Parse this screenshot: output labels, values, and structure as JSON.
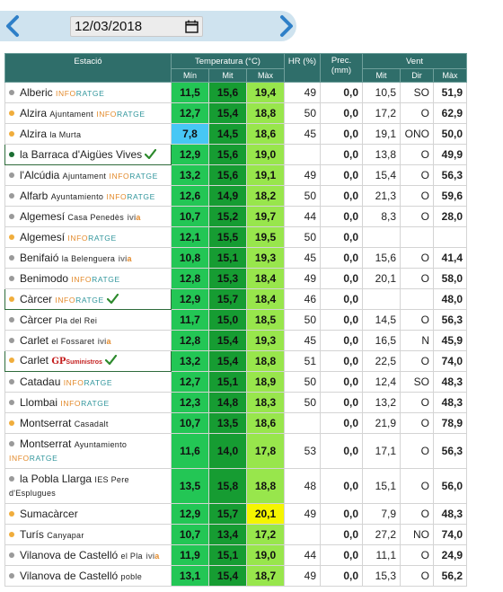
{
  "date_picker": {
    "value": "12/03/2018",
    "prev_icon": "chevron-left-icon",
    "next_icon": "chevron-right-icon",
    "calendar_icon": "calendar-icon"
  },
  "header": {
    "station": "Estació",
    "temperature": "Temperatura (°C)",
    "hr": "HR (%)",
    "prec": "Prec. (mm)",
    "wind": "Vent",
    "t_min": "Mín",
    "t_mit": "Mit",
    "t_max": "Màx",
    "w_mit": "Mit",
    "w_dir": "Dir",
    "w_max": "Màx"
  },
  "colors": {
    "header_bg": "#2f6e6a",
    "min_green": "#23c655",
    "mit_green": "#169c32",
    "max_green": "#98e64c",
    "min_cold_blue": "#47c7f5",
    "max_hot_yellow": "#f5f500",
    "dot_gray": "#9a9a9a",
    "dot_orange": "#f0ad3c",
    "dot_green": "#1b6e32"
  },
  "rows": [
    {
      "name": "Alberic",
      "sub": "",
      "src": "INFORATGE",
      "dot": "gray",
      "tmin": "11,5",
      "tmit": "15,6",
      "tmax": "19,4",
      "hr": "49",
      "prec": "0,0",
      "wmit": "10,5",
      "wdir": "SO",
      "wmax": "51,9"
    },
    {
      "name": "Alzira",
      "sub": "Ajuntament",
      "src": "INFORATGE",
      "dot": "orange",
      "tmin": "12,7",
      "tmit": "15,4",
      "tmax": "18,8",
      "hr": "50",
      "prec": "0,0",
      "wmit": "17,2",
      "wdir": "O",
      "wmax": "62,9"
    },
    {
      "name": "Alzira",
      "sub": "la Murta",
      "src": "",
      "dot": "orange",
      "tmin": "7,8",
      "tmit": "14,5",
      "tmax": "18,6",
      "hr": "45",
      "prec": "0,0",
      "wmit": "19,1",
      "wdir": "ONO",
      "wmax": "50,0",
      "cold": true
    },
    {
      "name": "la Barraca d'Aigües Vives",
      "sub": "",
      "src": "",
      "dot": "green",
      "tmin": "12,9",
      "tmit": "15,6",
      "tmax": "19,0",
      "hr": "",
      "prec": "0,0",
      "wmit": "13,8",
      "wdir": "O",
      "wmax": "49,9",
      "check": true,
      "hl": true
    },
    {
      "name": "l'Alcúdia",
      "sub": "Ajuntament",
      "src": "INFORATGE",
      "dot": "gray",
      "tmin": "13,2",
      "tmit": "15,6",
      "tmax": "19,1",
      "hr": "49",
      "prec": "0,0",
      "wmit": "15,4",
      "wdir": "O",
      "wmax": "56,3"
    },
    {
      "name": "Alfarb",
      "sub": "Ayuntamiento",
      "src": "INFORATGE",
      "dot": "gray",
      "tmin": "12,6",
      "tmit": "14,9",
      "tmax": "18,2",
      "hr": "50",
      "prec": "0,0",
      "wmit": "21,3",
      "wdir": "O",
      "wmax": "59,6"
    },
    {
      "name": "Algemesí",
      "sub": "Casa Penedès",
      "src": "ivia",
      "dot": "gray",
      "tmin": "10,7",
      "tmit": "15,2",
      "tmax": "19,7",
      "hr": "44",
      "prec": "0,0",
      "wmit": "8,3",
      "wdir": "O",
      "wmax": "28,0"
    },
    {
      "name": "Algemesí",
      "sub": "",
      "src": "INFORATGE",
      "dot": "orange",
      "tmin": "12,1",
      "tmit": "15,5",
      "tmax": "19,5",
      "hr": "50",
      "prec": "0,0",
      "wmit": "",
      "wdir": "",
      "wmax": ""
    },
    {
      "name": "Benifaió",
      "sub": "la Belenguera",
      "src": "ivia",
      "dot": "gray",
      "tmin": "10,8",
      "tmit": "15,1",
      "tmax": "19,3",
      "hr": "45",
      "prec": "0,0",
      "wmit": "15,6",
      "wdir": "O",
      "wmax": "41,4"
    },
    {
      "name": "Benimodo",
      "sub": "",
      "src": "INFORATGE",
      "dot": "gray",
      "tmin": "12,8",
      "tmit": "15,3",
      "tmax": "18,4",
      "hr": "49",
      "prec": "0,0",
      "wmit": "20,1",
      "wdir": "O",
      "wmax": "58,0"
    },
    {
      "name": "Càrcer",
      "sub": "",
      "src": "INFORATGE",
      "dot": "orange",
      "tmin": "12,9",
      "tmit": "15,7",
      "tmax": "18,4",
      "hr": "46",
      "prec": "0,0",
      "wmit": "",
      "wdir": "",
      "wmax": "48,0",
      "check": true,
      "hl": true
    },
    {
      "name": "Càrcer",
      "sub": "Pla del Rei",
      "src": "",
      "dot": "gray",
      "tmin": "11,7",
      "tmit": "15,0",
      "tmax": "18,5",
      "hr": "50",
      "prec": "0,0",
      "wmit": "14,5",
      "wdir": "O",
      "wmax": "56,3"
    },
    {
      "name": "Carlet",
      "sub": "el Fossaret",
      "src": "ivia",
      "dot": "gray",
      "tmin": "12,8",
      "tmit": "15,4",
      "tmax": "19,3",
      "hr": "45",
      "prec": "0,0",
      "wmit": "16,5",
      "wdir": "N",
      "wmax": "45,9"
    },
    {
      "name": "Carlet",
      "sub": "",
      "src": "GP",
      "dot": "orange",
      "tmin": "13,2",
      "tmit": "15,4",
      "tmax": "18,8",
      "hr": "51",
      "prec": "0,0",
      "wmit": "22,5",
      "wdir": "O",
      "wmax": "74,0",
      "check": true,
      "hl": true
    },
    {
      "name": "Catadau",
      "sub": "",
      "src": "INFORATGE",
      "dot": "gray",
      "tmin": "12,7",
      "tmit": "15,1",
      "tmax": "18,9",
      "hr": "50",
      "prec": "0,0",
      "wmit": "12,4",
      "wdir": "SO",
      "wmax": "48,3"
    },
    {
      "name": "Llombai",
      "sub": "",
      "src": "INFORATGE",
      "dot": "gray",
      "tmin": "12,3",
      "tmit": "14,8",
      "tmax": "18,3",
      "hr": "50",
      "prec": "0,0",
      "wmit": "13,2",
      "wdir": "O",
      "wmax": "48,3"
    },
    {
      "name": "Montserrat",
      "sub": "Casadalt",
      "src": "",
      "dot": "orange",
      "tmin": "10,7",
      "tmit": "13,5",
      "tmax": "18,6",
      "hr": "",
      "prec": "0,0",
      "wmit": "21,9",
      "wdir": "O",
      "wmax": "78,9"
    },
    {
      "name": "Montserrat",
      "sub": "Ayuntamiento",
      "src": "INFORATGE",
      "dot": "gray",
      "tmin": "11,6",
      "tmit": "14,0",
      "tmax": "17,8",
      "hr": "53",
      "prec": "0,0",
      "wmit": "17,1",
      "wdir": "O",
      "wmax": "56,3",
      "tall": true
    },
    {
      "name": "la Pobla Llarga",
      "sub": "IES Pere d'Esplugues",
      "src": "",
      "dot": "gray",
      "tmin": "13,5",
      "tmit": "15,8",
      "tmax": "18,8",
      "hr": "48",
      "prec": "0,0",
      "wmit": "15,1",
      "wdir": "O",
      "wmax": "56,0",
      "tall": true
    },
    {
      "name": "Sumacàrcer",
      "sub": "",
      "src": "",
      "dot": "orange",
      "tmin": "12,9",
      "tmit": "15,7",
      "tmax": "20,1",
      "hr": "49",
      "prec": "0,0",
      "wmit": "7,9",
      "wdir": "O",
      "wmax": "48,3",
      "hot": true
    },
    {
      "name": "Turís",
      "sub": "Canyapar",
      "src": "",
      "dot": "orange",
      "tmin": "10,7",
      "tmit": "13,4",
      "tmax": "17,2",
      "hr": "",
      "prec": "0,0",
      "wmit": "27,2",
      "wdir": "NO",
      "wmax": "74,0"
    },
    {
      "name": "Vilanova de Castelló",
      "sub": "el Pla",
      "src": "ivia",
      "dot": "gray",
      "tmin": "11,9",
      "tmit": "15,1",
      "tmax": "19,0",
      "hr": "44",
      "prec": "0,0",
      "wmit": "11,1",
      "wdir": "O",
      "wmax": "24,9"
    },
    {
      "name": "Vilanova de Castelló",
      "sub": "poble",
      "src": "",
      "dot": "gray",
      "tmin": "13,1",
      "tmit": "15,4",
      "tmax": "18,7",
      "hr": "49",
      "prec": "0,0",
      "wmit": "15,3",
      "wdir": "O",
      "wmax": "56,2"
    }
  ]
}
